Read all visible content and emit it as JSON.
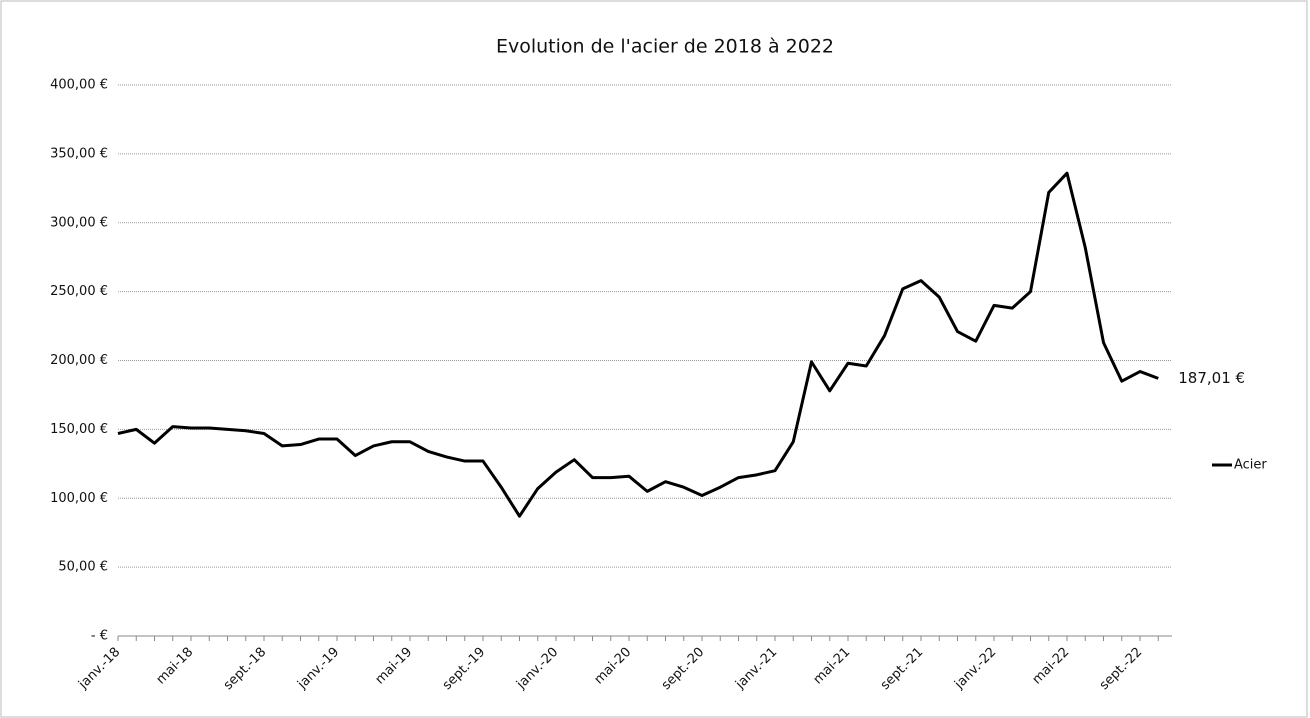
{
  "chart_data": {
    "type": "line",
    "title": "Evolution de l'acier de 2018 à 2022",
    "categories": [
      "janv.-18",
      null,
      null,
      null,
      "mai-18",
      null,
      null,
      null,
      "sept.-18",
      null,
      null,
      null,
      "janv.-19",
      null,
      null,
      null,
      "mai-19",
      null,
      null,
      null,
      "sept.-19",
      null,
      null,
      null,
      "janv.-20",
      null,
      null,
      null,
      "mai-20",
      null,
      null,
      null,
      "sept.-20",
      null,
      null,
      null,
      "janv.-21",
      null,
      null,
      null,
      "mai-21",
      null,
      null,
      null,
      "sept.-21",
      null,
      null,
      null,
      "janv.-22",
      null,
      null,
      null,
      "mai-22",
      null,
      null,
      null,
      "sept.-22",
      null
    ],
    "series": [
      {
        "name": "Acier",
        "color": "#000000",
        "values": [
          147,
          150,
          140,
          152,
          151,
          151,
          150,
          149,
          147,
          138,
          139,
          143,
          143,
          131,
          138,
          141,
          141,
          134,
          130,
          127,
          127,
          108,
          87,
          107,
          119,
          128,
          115,
          115,
          116,
          105,
          112,
          108,
          102,
          108,
          115,
          117,
          120,
          141,
          199,
          178,
          198,
          196,
          218,
          252,
          258,
          246,
          221,
          214,
          240,
          238,
          250,
          322,
          336,
          282,
          213,
          185,
          192,
          187.01
        ],
        "value_labels": [
          null,
          null,
          null,
          null,
          null,
          null,
          null,
          null,
          null,
          null,
          null,
          null,
          null,
          null,
          null,
          null,
          null,
          null,
          null,
          null,
          null,
          null,
          null,
          null,
          null,
          null,
          null,
          null,
          null,
          null,
          null,
          null,
          null,
          null,
          null,
          null,
          null,
          null,
          null,
          null,
          null,
          null,
          null,
          null,
          null,
          null,
          null,
          null,
          null,
          null,
          null,
          null,
          null,
          null,
          null,
          null,
          null,
          "187,01 €"
        ]
      }
    ],
    "ylim": [
      0,
      400
    ],
    "yticks": [
      {
        "value": 0,
        "label": "- €"
      },
      {
        "value": 50,
        "label": "50,00 €"
      },
      {
        "value": 100,
        "label": "100,00 €"
      },
      {
        "value": 150,
        "label": "150,00 €"
      },
      {
        "value": 200,
        "label": "200,00 €"
      },
      {
        "value": 250,
        "label": "250,00 €"
      },
      {
        "value": 300,
        "label": "300,00 €"
      },
      {
        "value": 350,
        "label": "350,00 €"
      },
      {
        "value": 400,
        "label": "400,00 €"
      }
    ],
    "grid": true,
    "legend": "right"
  }
}
